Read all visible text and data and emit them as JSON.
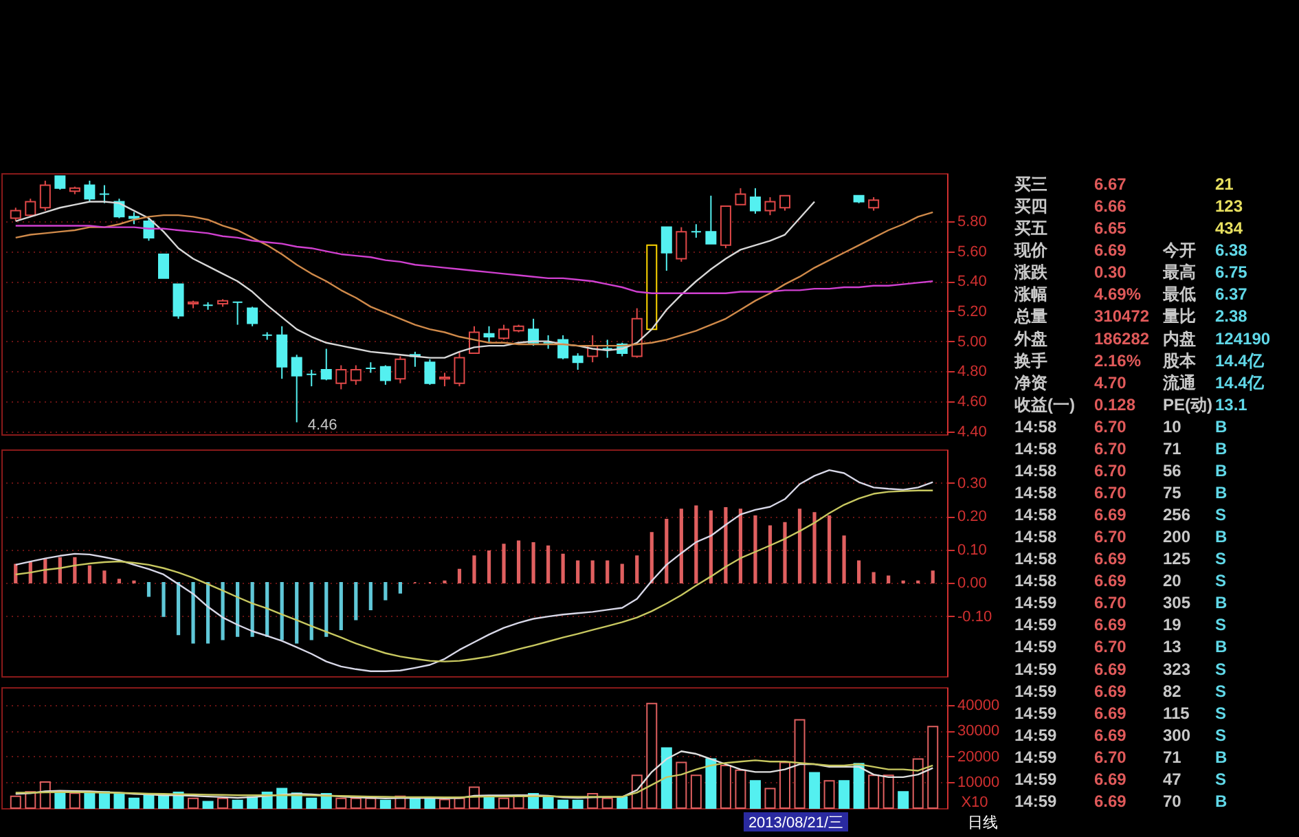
{
  "chart_data": [
    {
      "type": "candlestick",
      "categories": [
        null,
        null,
        null,
        null,
        null,
        null,
        null,
        null,
        null,
        null,
        null,
        null,
        null,
        null,
        null,
        null,
        null,
        null,
        null,
        null,
        null,
        null,
        null,
        null,
        null,
        null,
        null,
        null,
        null,
        null,
        null,
        null,
        null,
        null,
        null,
        null,
        null,
        null,
        null,
        null,
        null,
        null,
        null,
        null,
        null,
        null,
        null,
        null,
        null,
        null,
        null,
        null,
        null,
        null,
        null,
        null,
        null,
        null,
        null,
        null,
        null,
        null,
        null
      ],
      "ohlc": [
        [
          5.82,
          5.89,
          5.8,
          5.87
        ],
        [
          5.84,
          5.95,
          5.83,
          5.93
        ],
        [
          5.89,
          6.07,
          5.87,
          6.04
        ],
        [
          6.1,
          6.1,
          6.01,
          6.02
        ],
        [
          6.0,
          6.03,
          5.98,
          6.02
        ],
        [
          6.04,
          6.07,
          5.93,
          5.95
        ],
        [
          5.98,
          6.04,
          5.92,
          5.98
        ],
        [
          5.93,
          5.95,
          5.82,
          5.83
        ],
        [
          5.83,
          5.86,
          5.78,
          5.82
        ],
        [
          5.8,
          5.82,
          5.67,
          5.69
        ],
        [
          5.58,
          5.58,
          5.42,
          5.42
        ],
        [
          5.38,
          5.38,
          5.15,
          5.17
        ],
        [
          5.25,
          5.27,
          5.22,
          5.26
        ],
        [
          5.24,
          5.26,
          5.21,
          5.24
        ],
        [
          5.25,
          5.28,
          5.23,
          5.27
        ],
        [
          5.26,
          5.26,
          5.11,
          5.26
        ],
        [
          5.22,
          5.23,
          5.1,
          5.12
        ],
        [
          5.04,
          5.06,
          5.01,
          5.04
        ],
        [
          5.04,
          5.1,
          4.75,
          4.83
        ],
        [
          4.89,
          4.91,
          4.46,
          4.77
        ],
        [
          4.78,
          4.81,
          4.7,
          4.78
        ],
        [
          4.81,
          4.95,
          4.74,
          4.75
        ],
        [
          4.72,
          4.84,
          4.68,
          4.81
        ],
        [
          4.74,
          4.84,
          4.71,
          4.81
        ],
        [
          4.82,
          4.86,
          4.79,
          4.82
        ],
        [
          4.83,
          4.84,
          4.71,
          4.74
        ],
        [
          4.75,
          4.9,
          4.72,
          4.88
        ],
        [
          4.91,
          4.93,
          4.83,
          4.9
        ],
        [
          4.86,
          4.88,
          4.71,
          4.72
        ],
        [
          4.75,
          4.79,
          4.7,
          4.76
        ],
        [
          4.72,
          4.93,
          4.7,
          4.89
        ],
        [
          4.92,
          5.1,
          4.92,
          5.06
        ],
        [
          5.05,
          5.1,
          4.99,
          5.03
        ],
        [
          5.02,
          5.11,
          5.01,
          5.08
        ],
        [
          5.07,
          5.11,
          5.06,
          5.1
        ],
        [
          5.08,
          5.15,
          4.97,
          4.99
        ],
        [
          4.99,
          5.04,
          4.95,
          4.99
        ],
        [
          5.01,
          5.04,
          4.88,
          4.89
        ],
        [
          4.9,
          4.92,
          4.81,
          4.86
        ],
        [
          4.9,
          5.04,
          4.86,
          4.97
        ],
        [
          4.95,
          5.01,
          4.89,
          4.95
        ],
        [
          4.98,
          4.99,
          4.9,
          4.92
        ],
        [
          4.9,
          5.22,
          4.89,
          5.15
        ],
        [
          5.08,
          5.64,
          5.08,
          5.64
        ],
        [
          5.76,
          5.76,
          5.47,
          5.59
        ],
        [
          5.55,
          5.76,
          5.53,
          5.73
        ],
        [
          5.73,
          5.78,
          5.69,
          5.73
        ],
        [
          5.73,
          5.97,
          5.65,
          5.65
        ],
        [
          5.64,
          5.9,
          5.62,
          5.9
        ],
        [
          5.91,
          6.02,
          5.91,
          5.98
        ],
        [
          5.96,
          6.02,
          5.85,
          5.87
        ],
        [
          5.87,
          5.96,
          5.84,
          5.93
        ],
        [
          5.89,
          5.97,
          5.87,
          5.97
        ],
        null,
        null,
        null,
        null,
        [
          5.97,
          5.97,
          5.92,
          5.93
        ],
        [
          5.89,
          5.96,
          5.87,
          5.94
        ],
        null,
        null,
        null,
        null
      ],
      "colors": [
        "#e04848",
        "#e04848",
        "#e04848",
        "#54f0f0",
        "#e04848",
        "#54f0f0",
        "#54f0f0",
        "#54f0f0",
        "#54f0f0",
        "#54f0f0",
        "#54f0f0",
        "#54f0f0",
        "#e04848",
        "#54f0f0",
        "#e04848",
        "#54f0f0",
        "#54f0f0",
        "#54f0f0",
        "#54f0f0",
        "#54f0f0",
        "#54f0f0",
        "#54f0f0",
        "#e04848",
        "#e04848",
        "#54f0f0",
        "#54f0f0",
        "#e04848",
        "#54f0f0",
        "#54f0f0",
        "#e04848",
        "#e04848",
        "#e04848",
        "#54f0f0",
        "#e04848",
        "#e04848",
        "#54f0f0",
        "#54f0f0",
        "#54f0f0",
        "#54f0f0",
        "#e04848",
        "#54f0f0",
        "#54f0f0",
        "#e04848",
        "#ffd700",
        "#54f0f0",
        "#e04848",
        "#54f0f0",
        "#54f0f0",
        "#e04848",
        "#e04848",
        "#54f0f0",
        "#e04848",
        "#e04848",
        null,
        null,
        null,
        null,
        "#54f0f0",
        "#e04848",
        null,
        null,
        null,
        null
      ],
      "series": [
        {
          "type": "line",
          "color": "#d8d8d8",
          "values": [
            5.8,
            5.83,
            5.86,
            5.89,
            5.91,
            5.93,
            5.93,
            5.92,
            5.87,
            5.82,
            5.73,
            5.62,
            5.55,
            5.5,
            5.45,
            5.4,
            5.33,
            5.24,
            5.16,
            5.08,
            5.03,
            4.99,
            4.97,
            4.95,
            4.93,
            4.92,
            4.91,
            4.9,
            4.89,
            4.89,
            4.93,
            4.96,
            4.97,
            4.97,
            4.99,
            5.0,
            5.0,
            4.98,
            4.97,
            4.95,
            4.94,
            4.95,
            4.99,
            5.08,
            5.21,
            5.31,
            5.4,
            5.48,
            5.55,
            5.61,
            5.64,
            5.67,
            5.71,
            5.82,
            5.93,
            null,
            null,
            null,
            null,
            null,
            null,
            null,
            null
          ]
        },
        {
          "type": "line",
          "color": "#d08a4a",
          "values": [
            5.69,
            5.71,
            5.72,
            5.73,
            5.74,
            5.76,
            5.76,
            5.78,
            5.81,
            5.83,
            5.84,
            5.84,
            5.83,
            5.81,
            5.77,
            5.74,
            5.69,
            5.64,
            5.58,
            5.51,
            5.45,
            5.4,
            5.34,
            5.29,
            5.23,
            5.19,
            5.15,
            5.11,
            5.08,
            5.06,
            5.03,
            5.01,
            4.99,
            4.99,
            4.98,
            4.98,
            4.98,
            4.98,
            4.97,
            4.97,
            4.97,
            4.97,
            4.98,
            4.99,
            5.01,
            5.04,
            5.07,
            5.11,
            5.15,
            5.21,
            5.27,
            5.32,
            5.38,
            5.43,
            5.49,
            5.54,
            5.59,
            5.64,
            5.69,
            5.74,
            5.78,
            5.83,
            5.86
          ]
        },
        {
          "type": "line",
          "color": "#d040d0",
          "values": [
            5.77,
            5.77,
            5.77,
            5.77,
            5.77,
            5.77,
            5.76,
            5.76,
            5.76,
            5.75,
            5.75,
            5.74,
            5.73,
            5.72,
            5.7,
            5.69,
            5.67,
            5.66,
            5.65,
            5.63,
            5.62,
            5.6,
            5.58,
            5.57,
            5.56,
            5.54,
            5.53,
            5.51,
            5.5,
            5.49,
            5.48,
            5.47,
            5.46,
            5.45,
            5.44,
            5.43,
            5.42,
            5.42,
            5.41,
            5.4,
            5.38,
            5.36,
            5.33,
            5.32,
            5.32,
            5.32,
            5.32,
            5.32,
            5.32,
            5.33,
            5.33,
            5.33,
            5.34,
            5.34,
            5.35,
            5.35,
            5.36,
            5.36,
            5.37,
            5.37,
            5.38,
            5.39,
            5.4
          ]
        }
      ],
      "ylim": [
        4.38,
        6.12
      ],
      "yticks": [
        {
          "value": 4.4,
          "label": "4.40"
        },
        {
          "value": 4.6,
          "label": "4.60"
        },
        {
          "value": 4.8,
          "label": "4.80"
        },
        {
          "value": 5.0,
          "label": "5.00"
        },
        {
          "value": 5.2,
          "label": "5.20"
        },
        {
          "value": 5.4,
          "label": "5.40"
        },
        {
          "value": 5.6,
          "label": "5.60"
        },
        {
          "value": 5.8,
          "label": "5.80"
        }
      ],
      "grid": "y",
      "annotations": [
        "4.46"
      ]
    },
    {
      "type": "bar",
      "categories": [
        null,
        null,
        null,
        null,
        null,
        null,
        null,
        null,
        null,
        null,
        null,
        null,
        null,
        null,
        null,
        null,
        null,
        null,
        null,
        null,
        null,
        null,
        null,
        null,
        null,
        null,
        null,
        null,
        null,
        null,
        null,
        null,
        null,
        null,
        null,
        null,
        null,
        null,
        null,
        null,
        null,
        null,
        null,
        null,
        null,
        null,
        null,
        null,
        null,
        null,
        null,
        null,
        null,
        null,
        null,
        null,
        null,
        null,
        null,
        null,
        null,
        null,
        null
      ],
      "series": [
        {
          "color": "#e06060",
          "values": [
            0.055,
            0.06,
            0.07,
            0.075,
            0.075,
            0.05,
            0.035,
            0.01,
            0.005,
            null,
            null,
            null,
            null,
            null,
            null,
            null,
            null,
            null,
            null,
            null,
            null,
            null,
            null,
            null,
            null,
            null,
            null,
            0,
            0,
            0.005,
            0.04,
            0.08,
            0.095,
            0.115,
            0.125,
            0.12,
            0.11,
            0.085,
            0.065,
            0.065,
            0.065,
            0.055,
            0.08,
            0.15,
            0.19,
            0.22,
            0.23,
            0.215,
            0.225,
            0.22,
            0.2,
            0.17,
            0.18,
            0.22,
            0.21,
            0.2,
            0.14,
            0.065,
            0.03,
            0.02,
            0.005,
            0.005,
            0.035
          ]
        },
        {
          "color": "#60c8d8",
          "values": [
            null,
            null,
            null,
            null,
            null,
            null,
            null,
            null,
            null,
            -0.04,
            -0.1,
            -0.155,
            -0.18,
            -0.18,
            -0.17,
            -0.16,
            -0.16,
            -0.16,
            -0.17,
            -0.18,
            -0.17,
            -0.16,
            -0.14,
            -0.11,
            -0.08,
            -0.05,
            -0.03,
            null,
            null,
            null,
            null,
            null,
            null,
            null,
            null,
            null,
            null,
            null,
            null,
            null,
            null,
            null,
            null,
            null,
            null,
            null,
            null,
            null,
            null,
            null,
            null,
            null,
            null,
            null,
            null,
            null,
            null,
            null,
            null,
            null,
            null,
            null,
            null
          ]
        },
        {
          "type": "line",
          "color": "#d8d8e8",
          "values": [
            0.054,
            0.064,
            0.073,
            0.081,
            0.087,
            0.085,
            0.077,
            0.068,
            0.054,
            0.041,
            0.025,
            -0.004,
            -0.033,
            -0.072,
            -0.104,
            -0.126,
            -0.145,
            -0.159,
            -0.174,
            -0.193,
            -0.213,
            -0.236,
            -0.251,
            -0.259,
            -0.265,
            -0.265,
            -0.263,
            -0.255,
            -0.246,
            -0.228,
            -0.201,
            -0.178,
            -0.155,
            -0.135,
            -0.12,
            -0.108,
            -0.101,
            -0.095,
            -0.091,
            -0.087,
            -0.081,
            -0.075,
            -0.048,
            0.006,
            0.054,
            0.089,
            0.122,
            0.141,
            0.174,
            0.205,
            0.219,
            0.228,
            0.251,
            0.296,
            0.321,
            0.338,
            0.329,
            0.302,
            0.286,
            0.282,
            0.279,
            0.286,
            0.302
          ]
        },
        {
          "type": "line",
          "color": "#c8c860",
          "values": [
            0.025,
            0.031,
            0.039,
            0.044,
            0.052,
            0.058,
            0.062,
            0.064,
            0.06,
            0.054,
            0.044,
            0.031,
            0.015,
            -0.004,
            -0.023,
            -0.043,
            -0.062,
            -0.077,
            -0.095,
            -0.112,
            -0.13,
            -0.147,
            -0.164,
            -0.182,
            -0.197,
            -0.211,
            -0.221,
            -0.228,
            -0.234,
            -0.236,
            -0.234,
            -0.228,
            -0.221,
            -0.211,
            -0.199,
            -0.188,
            -0.176,
            -0.164,
            -0.153,
            -0.141,
            -0.13,
            -0.118,
            -0.104,
            -0.085,
            -0.062,
            -0.037,
            -0.008,
            0.019,
            0.048,
            0.074,
            0.093,
            0.112,
            0.132,
            0.155,
            0.18,
            0.209,
            0.234,
            0.253,
            0.267,
            0.273,
            0.275,
            0.277,
            0.277
          ]
        }
      ],
      "ylim": [
        -0.28,
        0.4
      ],
      "yticks": [
        {
          "value": -0.1,
          "label": "-0.10"
        },
        {
          "value": 0,
          "label": "0.00"
        },
        {
          "value": 0.1,
          "label": "0.10"
        },
        {
          "value": 0.2,
          "label": "0.20"
        },
        {
          "value": 0.3,
          "label": "0.30"
        }
      ],
      "grid": "y"
    },
    {
      "type": "bar",
      "categories": [
        null,
        null,
        null,
        null,
        null,
        null,
        null,
        null,
        null,
        null,
        null,
        null,
        null,
        null,
        null,
        null,
        null,
        null,
        null,
        null,
        null,
        null,
        null,
        null,
        null,
        null,
        null,
        null,
        null,
        null,
        null,
        null,
        null,
        null,
        null,
        null,
        null,
        null,
        null,
        null,
        null,
        null,
        null,
        null,
        null,
        null,
        null,
        null,
        null,
        null,
        null,
        null,
        null,
        null,
        null,
        null,
        null,
        null,
        null,
        null,
        null,
        null,
        null
      ],
      "series": [
        {
          "color": "#e06060",
          "values": [
            4600,
            6300,
            10100,
            null,
            5800,
            null,
            null,
            null,
            null,
            null,
            null,
            null,
            3800,
            null,
            3800,
            null,
            null,
            null,
            null,
            null,
            null,
            null,
            3800,
            3800,
            3800,
            null,
            4600,
            null,
            null,
            3300,
            3800,
            8100,
            null,
            3800,
            4600,
            null,
            null,
            null,
            null,
            5600,
            3800,
            null,
            12700,
            40500,
            null,
            17700,
            12700,
            null,
            16500,
            14700,
            null,
            7600,
            17700,
            34200,
            null,
            10600,
            null,
            null,
            12700,
            12700,
            null,
            19000,
            31600
          ]
        },
        {
          "color": "#54f0f0",
          "values": [
            null,
            null,
            null,
            6300,
            null,
            6300,
            6300,
            5600,
            3800,
            5100,
            5100,
            6100,
            null,
            2500,
            null,
            3000,
            4300,
            6100,
            7600,
            5800,
            3800,
            5600,
            null,
            null,
            null,
            3000,
            null,
            3800,
            3800,
            null,
            null,
            null,
            4300,
            null,
            null,
            5600,
            4300,
            3000,
            3000,
            null,
            null,
            4300,
            null,
            null,
            23300,
            null,
            null,
            19000,
            null,
            null,
            10600,
            null,
            null,
            null,
            13700,
            null,
            10600,
            17200,
            null,
            null,
            6300,
            null,
            null
          ]
        },
        {
          "type": "line",
          "color": "#e0e0e0",
          "values": [
            5500,
            5800,
            6500,
            6700,
            6600,
            6500,
            6200,
            6000,
            5500,
            5300,
            5000,
            5000,
            4800,
            4500,
            4300,
            4000,
            4300,
            4700,
            5200,
            5500,
            5300,
            5000,
            4500,
            4200,
            4000,
            3800,
            3900,
            3900,
            3900,
            3800,
            3900,
            4800,
            4900,
            4900,
            5000,
            5000,
            4800,
            4200,
            4000,
            4200,
            4300,
            4300,
            7000,
            14000,
            19000,
            22000,
            21000,
            19000,
            17000,
            15000,
            14000,
            14000,
            15000,
            17000,
            17000,
            16000,
            16000,
            16000,
            13000,
            12000,
            12000,
            13000,
            15500
          ]
        },
        {
          "type": "line",
          "color": "#c8c860",
          "values": [
            6000,
            6000,
            6100,
            6200,
            6200,
            6100,
            6000,
            5900,
            5800,
            5600,
            5500,
            5400,
            5300,
            5200,
            5100,
            5000,
            5000,
            5000,
            5000,
            5000,
            4900,
            4800,
            4700,
            4600,
            4500,
            4400,
            4300,
            4300,
            4300,
            4200,
            4200,
            4400,
            4500,
            4500,
            4600,
            4600,
            4600,
            4500,
            4400,
            4400,
            4400,
            4400,
            6000,
            9000,
            12000,
            13000,
            15000,
            16500,
            17500,
            18000,
            18500,
            18000,
            18000,
            17500,
            17000,
            16500,
            16500,
            17000,
            16000,
            15000,
            15000,
            14500,
            16500
          ]
        }
      ],
      "ylim": [
        0,
        46800
      ],
      "yticks": [
        10000,
        20000,
        30000,
        40000
      ],
      "grid": "y",
      "annotations": [
        "X10",
        "2013/08/21/三",
        "日线"
      ]
    },
    {
      "type": "other",
      "annotations": [
        "买三  6.67  21",
        "买四  6.66  123",
        "买五  6.65  434",
        "现价  6.69  今开  6.38",
        "涨跌  0.30  最高  6.75",
        "涨幅  4.69%  最低  6.37",
        "总量  310472  量比  2.38",
        "外盘  186282  内盘  124190",
        "换手  2.16%  股本  14.4亿",
        "净资  4.70  流通  14.4亿",
        "收益(一)  0.128  PE(动)  13.1",
        "14:58  6.70  10  B",
        "14:58  6.70  71  B",
        "14:58  6.70  56  B",
        "14:58  6.70  75  B",
        "14:58  6.69  256  S",
        "14:58  6.70  200  B",
        "14:58  6.69  125  S",
        "14:58  6.69  20  S",
        "14:59  6.70  305  B",
        "14:59  6.69  19  S",
        "14:59  6.70  13  B",
        "14:59  6.69  323  S",
        "14:59  6.69  82  S",
        "14:59  6.69  115  S",
        "14:59  6.69  300  S",
        "14:59  6.70  71  B",
        "14:59  6.69  47  S",
        "14:59  6.69  70  B"
      ]
    }
  ]
}
